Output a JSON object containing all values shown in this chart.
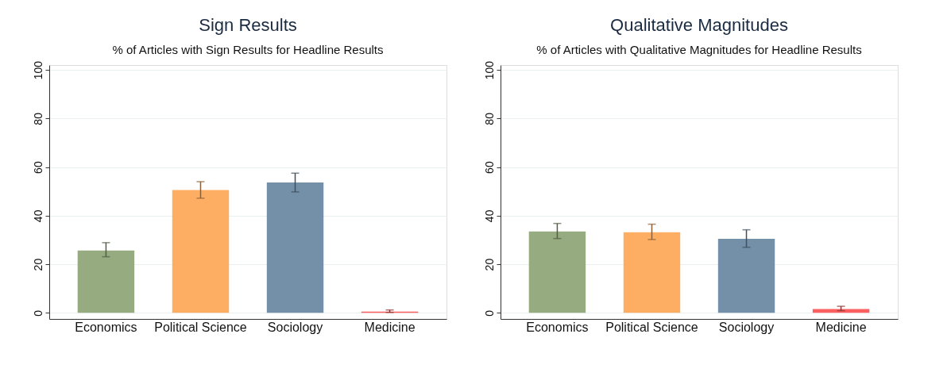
{
  "chart_data": [
    {
      "type": "bar",
      "title": "Sign Results",
      "subtitle": "% of Articles with Sign Results for Headline Results",
      "categories": [
        "Economics",
        "Political Science",
        "Sociology",
        "Medicine"
      ],
      "values": [
        25.7,
        50.6,
        53.7,
        0.5
      ],
      "colors": [
        "#96ab80",
        "#feae63",
        "#7490a8",
        "#fb5f5f"
      ],
      "errors": [
        [
          23.1,
          28.9
        ],
        [
          47.2,
          54.0
        ],
        [
          49.8,
          57.5
        ],
        [
          0.2,
          1.2
        ]
      ],
      "ylim": [
        -2.5,
        102
      ],
      "yticks": [
        0,
        20,
        40,
        60,
        80,
        100
      ],
      "grid": "y"
    },
    {
      "type": "bar",
      "title": "Qualitative Magnitudes",
      "subtitle": "% of Articles with Qualitative Magnitudes for Headline Results",
      "categories": [
        "Economics",
        "Political Science",
        "Sociology",
        "Medicine"
      ],
      "values": [
        33.5,
        33.2,
        30.5,
        1.6
      ],
      "colors": [
        "#96ab80",
        "#feae63",
        "#7490a8",
        "#fb5f5f"
      ],
      "errors": [
        [
          30.6,
          36.8
        ],
        [
          30.2,
          36.5
        ],
        [
          27.0,
          34.2
        ],
        [
          0.9,
          2.7
        ]
      ],
      "ylim": [
        -2.5,
        102
      ],
      "yticks": [
        0,
        20,
        40,
        60,
        80,
        100
      ],
      "grid": "y"
    }
  ]
}
